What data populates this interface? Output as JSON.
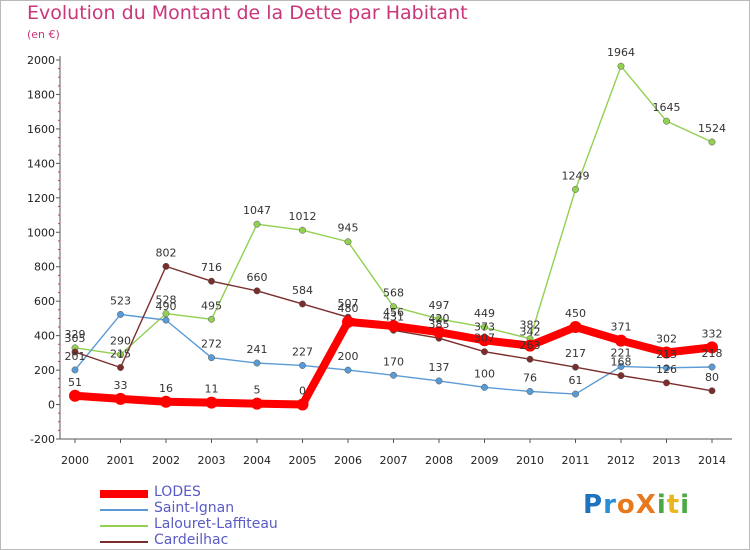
{
  "title": "Evolution du Montant de la Dette par Habitant",
  "subtitle": "(en €)",
  "logo_text": "ProXiti",
  "chart_data": {
    "type": "line",
    "x": [
      "2000",
      "2001",
      "2002",
      "2003",
      "2004",
      "2005",
      "2006",
      "2007",
      "2008",
      "2009",
      "2010",
      "2011",
      "2012",
      "2013",
      "2014"
    ],
    "ylim": [
      -200,
      2000
    ],
    "yticks": [
      "-200",
      "0",
      "200",
      "400",
      "600",
      "800",
      "1000",
      "1200",
      "1400",
      "1600",
      "1800",
      "2000"
    ],
    "grid": false,
    "legend_position": "bottom-left",
    "series": [
      {
        "name": "LODES",
        "color": "#ff0000",
        "values": [
          51,
          33,
          16,
          11,
          5,
          0,
          480,
          456,
          420,
          373,
          342,
          450,
          371,
          302,
          332
        ]
      },
      {
        "name": "Saint-Ignan",
        "color": "#5b9bd5",
        "values": [
          201,
          523,
          490,
          272,
          241,
          227,
          200,
          170,
          137,
          100,
          76,
          61,
          221,
          213,
          218
        ]
      },
      {
        "name": "Lalouret-Laffiteau",
        "color": "#92d050",
        "values": [
          329,
          290,
          528,
          495,
          1047,
          1012,
          945,
          568,
          497,
          449,
          382,
          1249,
          1964,
          1645,
          1524
        ]
      },
      {
        "name": "Cardeilhac",
        "color": "#7b2c2c",
        "values": [
          305,
          215,
          802,
          716,
          660,
          584,
          507,
          431,
          385,
          307,
          263,
          217,
          168,
          126,
          80
        ]
      }
    ]
  },
  "colors": {
    "title": "#c9367a",
    "legend_text": "#5a5bc4"
  }
}
